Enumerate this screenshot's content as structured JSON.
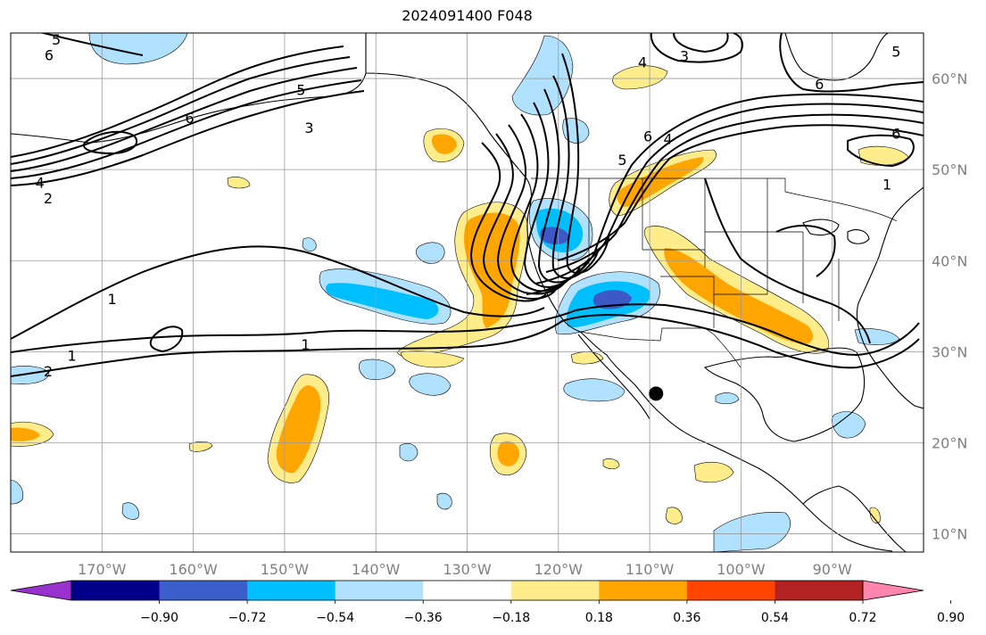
{
  "title": "2024091400 F048",
  "map": {
    "lon_range": [
      -180,
      -80
    ],
    "lat_range": [
      8,
      65
    ],
    "lon_ticks": [
      {
        "value": -170,
        "label": "170°W"
      },
      {
        "value": -160,
        "label": "160°W"
      },
      {
        "value": -150,
        "label": "150°W"
      },
      {
        "value": -140,
        "label": "140°W"
      },
      {
        "value": -130,
        "label": "130°W"
      },
      {
        "value": -120,
        "label": "120°W"
      },
      {
        "value": -110,
        "label": "110°W"
      },
      {
        "value": -100,
        "label": "100°W"
      },
      {
        "value": -90,
        "label": "90°W"
      }
    ],
    "lat_ticks": [
      {
        "value": 60,
        "label": "60°N"
      },
      {
        "value": 50,
        "label": "50°N"
      },
      {
        "value": 40,
        "label": "40°N"
      },
      {
        "value": 30,
        "label": "30°N"
      },
      {
        "value": 20,
        "label": "20°N"
      },
      {
        "value": 10,
        "label": "10°N"
      }
    ],
    "grid": true,
    "contour_labels": [
      {
        "text": "6",
        "lon": -175.8,
        "lat": 62.6
      },
      {
        "text": "5",
        "lon": -175.0,
        "lat": 64.3
      },
      {
        "text": "6",
        "lon": -160.4,
        "lat": 55.7
      },
      {
        "text": "5",
        "lon": -148.2,
        "lat": 58.8
      },
      {
        "text": "3",
        "lon": -147.3,
        "lat": 54.6
      },
      {
        "text": "4",
        "lon": -176.8,
        "lat": 48.6
      },
      {
        "text": "2",
        "lon": -175.9,
        "lat": 46.9
      },
      {
        "text": "1",
        "lon": -168.9,
        "lat": 35.8
      },
      {
        "text": "1",
        "lon": -173.3,
        "lat": 29.6
      },
      {
        "text": "2",
        "lon": -175.9,
        "lat": 27.9
      },
      {
        "text": "1",
        "lon": -147.7,
        "lat": 30.8
      },
      {
        "text": "4",
        "lon": -110.8,
        "lat": 61.8
      },
      {
        "text": "3",
        "lon": -106.2,
        "lat": 62.5
      },
      {
        "text": "6",
        "lon": -110.2,
        "lat": 53.7
      },
      {
        "text": "4",
        "lon": -108.0,
        "lat": 53.4
      },
      {
        "text": "5",
        "lon": -113.0,
        "lat": 51.1
      },
      {
        "text": "6",
        "lon": -91.4,
        "lat": 59.4
      },
      {
        "text": "5",
        "lon": -83.0,
        "lat": 63.0
      },
      {
        "text": "6",
        "lon": -83.0,
        "lat": 54.0
      },
      {
        "text": "1",
        "lon": -84.0,
        "lat": 48.4
      }
    ],
    "marker": {
      "name": "black-dot",
      "lon": -109.3,
      "lat": 25.4
    },
    "anomaly_colors": {
      "neg_strong": "#3c59c6",
      "neg_mid": "#00bfff",
      "neg_weak": "#b0e2ff",
      "pos_weak": "#ffec8b",
      "pos_mid": "#ffa500"
    }
  },
  "colorbar": {
    "colors": [
      "#9932cc",
      "#00008b",
      "#3a5fcd",
      "#00bfff",
      "#b0e2ff",
      "#ffffff",
      "#ffec8b",
      "#ffa500",
      "#ff4500",
      "#b22222",
      "#ff85ad"
    ],
    "tick_labels": [
      "−0.90",
      "−0.72",
      "−0.54",
      "−0.36",
      "−0.18",
      "0.18",
      "0.36",
      "0.54",
      "0.72",
      "0.90"
    ]
  }
}
